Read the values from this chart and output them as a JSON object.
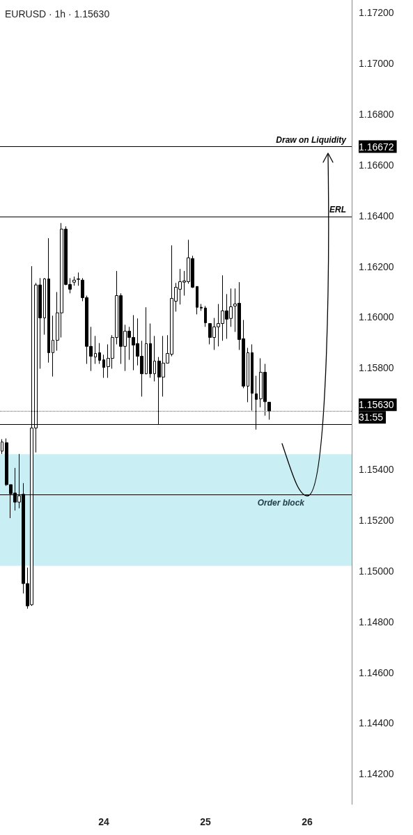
{
  "chart_data": {
    "type": "candlestick",
    "title": "EURUSD · 1h · 1.15630",
    "categories": [
      null,
      null,
      null,
      null,
      null,
      null,
      null,
      null,
      null,
      null,
      null,
      null,
      null,
      null,
      null,
      null,
      null,
      null,
      null,
      null,
      null,
      null,
      null,
      null,
      "24",
      null,
      null,
      null,
      null,
      null,
      null,
      null,
      null,
      null,
      null,
      null,
      null,
      null,
      null,
      null,
      null,
      null,
      null,
      null,
      null,
      null,
      null,
      null,
      "25",
      null,
      null,
      null,
      null,
      null,
      null,
      null,
      null,
      null,
      null,
      null,
      null,
      null,
      null,
      null,
      null,
      null,
      null,
      null,
      null,
      null,
      null,
      null,
      "26",
      null,
      null,
      null,
      null,
      null,
      null,
      null,
      null,
      null,
      null
    ],
    "ohlc": [
      [
        1.15472,
        1.15519,
        1.15461,
        1.15508
      ],
      [
        1.15505,
        1.15522,
        1.15335,
        1.1534
      ],
      [
        1.1534,
        1.1534,
        1.15208,
        1.15304
      ],
      [
        1.15307,
        1.15406,
        1.15238,
        1.15271
      ],
      [
        1.15271,
        1.15461,
        1.15247,
        1.15296
      ],
      [
        1.15302,
        1.15346,
        1.14911,
        1.1495
      ],
      [
        1.1495,
        1.15013,
        1.14851,
        1.14862
      ],
      [
        1.14867,
        1.16201,
        1.14862,
        1.15563
      ],
      [
        1.15563,
        1.16135,
        1.15467,
        1.16127
      ],
      [
        1.16127,
        1.16154,
        1.15797,
        1.15997
      ],
      [
        1.15997,
        1.16154,
        1.15931,
        1.16151
      ],
      [
        1.16151,
        1.16311,
        1.15821,
        1.1586
      ],
      [
        1.1586,
        1.16006,
        1.15766,
        1.15909
      ],
      [
        1.15909,
        1.16099,
        1.15868,
        1.16017
      ],
      [
        1.16017,
        1.16371,
        1.1592,
        1.16347
      ],
      [
        1.16347,
        1.16358,
        1.16126,
        1.16129
      ],
      [
        1.16129,
        1.16154,
        1.16094,
        1.1611
      ],
      [
        1.16138,
        1.1616,
        1.16124,
        1.16146
      ],
      [
        1.16149,
        1.16176,
        1.16124,
        1.16151
      ],
      [
        1.16146,
        1.16154,
        1.16063,
        1.16077
      ],
      [
        1.16077,
        1.16085,
        1.15816,
        1.15885
      ],
      [
        1.15885,
        1.15962,
        1.15788,
        1.15846
      ],
      [
        1.15843,
        1.15926,
        1.15816,
        1.15857
      ],
      [
        1.1586,
        1.15898,
        1.15816,
        1.1583
      ],
      [
        1.15832,
        1.15852,
        1.15761,
        1.15802
      ],
      [
        1.15805,
        1.15893,
        1.15761,
        1.15838
      ],
      [
        1.15838,
        1.15929,
        1.15797,
        1.1592
      ],
      [
        1.1592,
        1.16182,
        1.15893,
        1.16085
      ],
      [
        1.16085,
        1.16094,
        1.15816,
        1.15885
      ],
      [
        1.15885,
        1.1597,
        1.15788,
        1.15945
      ],
      [
        1.15945,
        1.15962,
        1.15832,
        1.1592
      ],
      [
        1.1592,
        1.16008,
        1.15791,
        1.1589
      ],
      [
        1.15896,
        1.15995,
        1.1581,
        1.15846
      ],
      [
        1.15846,
        1.15907,
        1.15687,
        1.15777
      ],
      [
        1.15777,
        1.16039,
        1.15775,
        1.15896
      ],
      [
        1.15896,
        1.15975,
        1.15761,
        1.15777
      ],
      [
        1.15777,
        1.15926,
        1.15747,
        1.15827
      ],
      [
        1.15827,
        1.15843,
        1.15577,
        1.15764
      ],
      [
        1.15764,
        1.15926,
        1.15687,
        1.15819
      ],
      [
        1.15819,
        1.15929,
        1.15819,
        1.15857
      ],
      [
        1.15854,
        1.16283,
        1.15846,
        1.16074
      ],
      [
        1.16063,
        1.16135,
        1.16022,
        1.16118
      ],
      [
        1.1611,
        1.1619,
        1.1605,
        1.1614
      ],
      [
        1.16138,
        1.16182,
        1.16085,
        1.16143
      ],
      [
        1.1614,
        1.16305,
        1.16132,
        1.16234
      ],
      [
        1.16231,
        1.16242,
        1.16115,
        1.16118
      ],
      [
        1.16121,
        1.16121,
        1.16011,
        1.16039
      ],
      [
        1.16039,
        1.16052,
        1.16025,
        1.16036
      ],
      [
        1.16036,
        1.16044,
        1.15962,
        1.15978
      ],
      [
        1.15975,
        1.15975,
        1.15893,
        1.1592
      ],
      [
        1.1592,
        1.15997,
        1.15871,
        1.15962
      ],
      [
        1.15962,
        1.16052,
        1.15885,
        1.15975
      ],
      [
        1.15975,
        1.16165,
        1.15907,
        1.16025
      ],
      [
        1.16025,
        1.16091,
        1.15915,
        1.15992
      ],
      [
        1.15995,
        1.16113,
        1.15962,
        1.16041
      ],
      [
        1.16044,
        1.16113,
        1.15942,
        1.16052
      ],
      [
        1.16055,
        1.16138,
        1.15871,
        1.15912
      ],
      [
        1.15915,
        1.15989,
        1.1572,
        1.15728
      ],
      [
        1.15728,
        1.15879,
        1.15665,
        1.1586
      ],
      [
        1.1586,
        1.15893,
        1.15632,
        1.157
      ],
      [
        1.15698,
        1.15769,
        1.15557,
        1.15676
      ],
      [
        1.15678,
        1.15838,
        1.15645,
        1.15783
      ],
      [
        1.15783,
        1.15816,
        1.15612,
        1.15667
      ],
      [
        1.15665,
        1.15665,
        1.15596,
        1.1563
      ],
      null,
      null,
      null,
      null,
      null,
      null,
      null,
      null,
      null,
      null,
      null,
      null,
      null,
      null,
      null,
      null,
      null,
      null,
      null
    ],
    "ylim": [
      1.1408,
      1.1725
    ],
    "yticks": [
      {
        "value": 1.142,
        "label": "1.14200"
      },
      {
        "value": 1.144,
        "label": "1.14400"
      },
      {
        "value": 1.146,
        "label": "1.14600"
      },
      {
        "value": 1.148,
        "label": "1.14800"
      },
      {
        "value": 1.15,
        "label": "1.15000"
      },
      {
        "value": 1.152,
        "label": "1.15200"
      },
      {
        "value": 1.154,
        "label": "1.15400"
      },
      {
        "value": 1.158,
        "label": "1.15800"
      },
      {
        "value": 1.16,
        "label": "1.16000"
      },
      {
        "value": 1.162,
        "label": "1.16200"
      },
      {
        "value": 1.164,
        "label": "1.16400"
      },
      {
        "value": 1.166,
        "label": "1.16600"
      },
      {
        "value": 1.168,
        "label": "1.16800"
      },
      {
        "value": 1.17,
        "label": "1.17000"
      },
      {
        "value": 1.172,
        "label": "1.17200"
      },
      {
        "value": 1.16672,
        "label": "1.16672"
      },
      {
        "value": 1.1563,
        "label": "1.15630\n31:55"
      }
    ],
    "ref_lines": [
      {
        "axis": "y",
        "value": 1.16672,
        "label": "Draw on Liquidity",
        "color": "#000000"
      },
      {
        "axis": "y",
        "value": 1.16396,
        "label": "ERL",
        "color": "#000000"
      },
      {
        "axis": "y",
        "value": 1.1563,
        "label": null,
        "color": "#555555",
        "line_style": "dotted"
      },
      {
        "axis": "y",
        "value": 1.15577,
        "label": null,
        "color": "#000000"
      },
      {
        "axis": "y",
        "value": 1.153,
        "label": null,
        "color": "#000000"
      }
    ],
    "bands": [
      {
        "axis": "y",
        "from": 1.1502,
        "to": 1.1546,
        "label": "Order block",
        "color": "#c9eef3"
      }
    ],
    "grid": false
  }
}
